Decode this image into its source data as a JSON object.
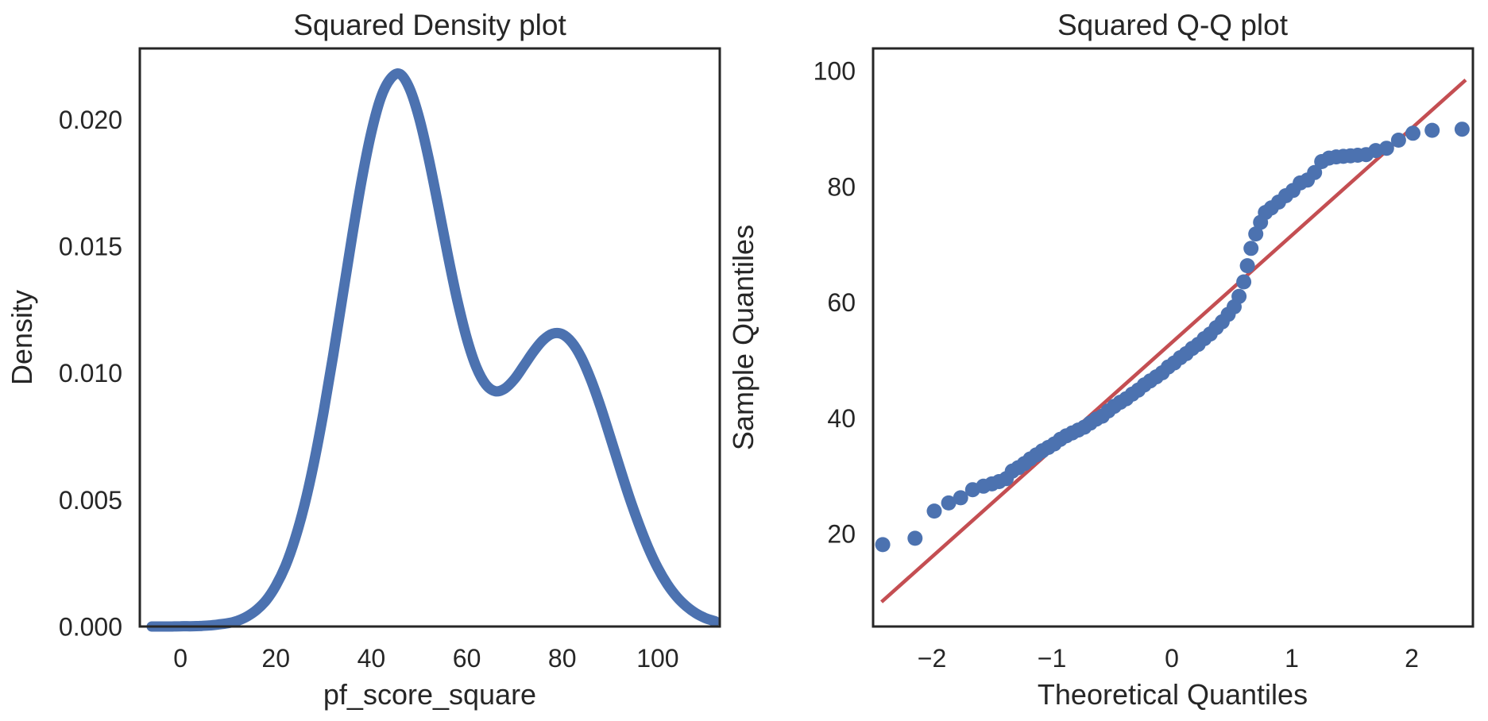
{
  "figure": {
    "background": "#ffffff",
    "text_color": "#262626",
    "spine_color": "#262626"
  },
  "chart_data": [
    {
      "id": "density",
      "type": "line",
      "title": "Squared Density plot",
      "xlabel": "pf_score_square",
      "ylabel": "Density",
      "xlim": [
        -8.5,
        113.0
      ],
      "ylim": [
        0,
        0.0228
      ],
      "grid": false,
      "legend": "none",
      "line_color": "#4c72b0",
      "line_width": 13,
      "xticks": {
        "values": [
          0,
          20,
          40,
          60,
          80,
          100
        ],
        "labels": [
          "0",
          "20",
          "40",
          "60",
          "80",
          "100"
        ]
      },
      "yticks": {
        "values": [
          0,
          0.005,
          0.01,
          0.015,
          0.02
        ],
        "labels": [
          "0.000",
          "0.005",
          "0.010",
          "0.015",
          "0.020"
        ]
      },
      "curve": [
        [
          -6,
          0
        ],
        [
          -4,
          0
        ],
        [
          -2,
          0
        ],
        [
          0,
          1e-05
        ],
        [
          2,
          1e-05
        ],
        [
          4,
          2e-05
        ],
        [
          6,
          4e-05
        ],
        [
          8,
          8e-05
        ],
        [
          10,
          0.00013
        ],
        [
          12,
          0.00023
        ],
        [
          14,
          0.0004
        ],
        [
          16,
          0.00066
        ],
        [
          18,
          0.00104
        ],
        [
          20,
          0.00161
        ],
        [
          22,
          0.00239
        ],
        [
          24,
          0.00345
        ],
        [
          26,
          0.0048
        ],
        [
          28,
          0.00648
        ],
        [
          30,
          0.00846
        ],
        [
          32,
          0.01068
        ],
        [
          34,
          0.01304
        ],
        [
          36,
          0.01542
        ],
        [
          38,
          0.01763
        ],
        [
          40,
          0.01949
        ],
        [
          42,
          0.02086
        ],
        [
          44,
          0.0216
        ],
        [
          46,
          0.02179
        ],
        [
          48,
          0.02122
        ],
        [
          50,
          0.02007
        ],
        [
          52,
          0.01847
        ],
        [
          54,
          0.01661
        ],
        [
          56,
          0.01468
        ],
        [
          58,
          0.01288
        ],
        [
          60,
          0.01136
        ],
        [
          62,
          0.01023
        ],
        [
          64,
          0.00954
        ],
        [
          66,
          0.00928
        ],
        [
          68,
          0.00939
        ],
        [
          70,
          0.00976
        ],
        [
          72,
          0.0103
        ],
        [
          74,
          0.01085
        ],
        [
          76,
          0.0113
        ],
        [
          78,
          0.01155
        ],
        [
          80,
          0.01153
        ],
        [
          82,
          0.01121
        ],
        [
          84,
          0.0106
        ],
        [
          86,
          0.00973
        ],
        [
          88,
          0.00868
        ],
        [
          90,
          0.0075
        ],
        [
          92,
          0.0063
        ],
        [
          94,
          0.00513
        ],
        [
          96,
          0.00406
        ],
        [
          98,
          0.00311
        ],
        [
          100,
          0.00231
        ],
        [
          102,
          0.00167
        ],
        [
          104,
          0.00117
        ],
        [
          106,
          0.0008
        ],
        [
          108,
          0.00052
        ],
        [
          110,
          0.00033
        ],
        [
          112,
          0.00021
        ]
      ]
    },
    {
      "id": "qq",
      "type": "scatter",
      "title": "Squared Q-Q plot",
      "xlabel": "Theoretical Quantiles",
      "ylabel": "Sample Quantiles",
      "xlim": [
        -2.49,
        2.51
      ],
      "ylim": [
        3.95,
        103.85
      ],
      "grid": false,
      "legend": "none",
      "marker_color": "#4c72b0",
      "marker_radius": 9.5,
      "ref_line": {
        "color": "#c44e52",
        "width": 4.6,
        "x1": -2.42,
        "y1": 8.2,
        "x2": 2.45,
        "y2": 98.4
      },
      "xticks": {
        "values": [
          -2,
          -1,
          0,
          1,
          2
        ],
        "labels": [
          "−2",
          "−1",
          "0",
          "1",
          "2"
        ]
      },
      "yticks": {
        "values": [
          20,
          40,
          60,
          80,
          100
        ],
        "labels": [
          "20",
          "40",
          "60",
          "80",
          "100"
        ]
      },
      "points": [
        [
          -2.41,
          18.1
        ],
        [
          -2.14,
          19.2
        ],
        [
          -1.98,
          23.9
        ],
        [
          -1.86,
          25.3
        ],
        [
          -1.76,
          26.2
        ],
        [
          -1.66,
          27.6
        ],
        [
          -1.57,
          28.2
        ],
        [
          -1.5,
          28.6
        ],
        [
          -1.44,
          29.0
        ],
        [
          -1.38,
          29.5
        ],
        [
          -1.33,
          30.8
        ],
        [
          -1.28,
          31.4
        ],
        [
          -1.23,
          32.1
        ],
        [
          -1.18,
          32.9
        ],
        [
          -1.13,
          33.6
        ],
        [
          -1.08,
          34.3
        ],
        [
          -1.03,
          34.9
        ],
        [
          -0.98,
          35.5
        ],
        [
          -0.93,
          36.3
        ],
        [
          -0.88,
          36.9
        ],
        [
          -0.83,
          37.4
        ],
        [
          -0.78,
          37.9
        ],
        [
          -0.73,
          38.4
        ],
        [
          -0.68,
          39.1
        ],
        [
          -0.63,
          39.8
        ],
        [
          -0.58,
          40.3
        ],
        [
          -0.53,
          41.2
        ],
        [
          -0.48,
          42.0
        ],
        [
          -0.43,
          42.7
        ],
        [
          -0.38,
          43.3
        ],
        [
          -0.33,
          44.1
        ],
        [
          -0.28,
          44.8
        ],
        [
          -0.23,
          45.7
        ],
        [
          -0.18,
          46.4
        ],
        [
          -0.13,
          47.1
        ],
        [
          -0.08,
          47.8
        ],
        [
          -0.03,
          48.8
        ],
        [
          0.02,
          49.5
        ],
        [
          0.07,
          50.4
        ],
        [
          0.12,
          51.1
        ],
        [
          0.17,
          52.0
        ],
        [
          0.22,
          52.7
        ],
        [
          0.27,
          53.7
        ],
        [
          0.32,
          54.5
        ],
        [
          0.37,
          55.6
        ],
        [
          0.42,
          56.6
        ],
        [
          0.47,
          57.9
        ],
        [
          0.52,
          59.2
        ],
        [
          0.56,
          61.0
        ],
        [
          0.6,
          63.5
        ],
        [
          0.63,
          66.3
        ],
        [
          0.66,
          69.3
        ],
        [
          0.7,
          71.8
        ],
        [
          0.74,
          73.8
        ],
        [
          0.78,
          75.5
        ],
        [
          0.83,
          76.3
        ],
        [
          0.89,
          77.3
        ],
        [
          0.95,
          78.4
        ],
        [
          1.01,
          79.3
        ],
        [
          1.07,
          80.6
        ],
        [
          1.13,
          81.1
        ],
        [
          1.19,
          82.4
        ],
        [
          1.25,
          84.3
        ],
        [
          1.31,
          84.9
        ],
        [
          1.37,
          85.1
        ],
        [
          1.43,
          85.2
        ],
        [
          1.49,
          85.3
        ],
        [
          1.55,
          85.4
        ],
        [
          1.62,
          85.5
        ],
        [
          1.7,
          86.2
        ],
        [
          1.79,
          86.6
        ],
        [
          1.89,
          88.0
        ],
        [
          2.01,
          89.2
        ],
        [
          2.17,
          89.7
        ],
        [
          2.42,
          89.9
        ]
      ]
    }
  ]
}
